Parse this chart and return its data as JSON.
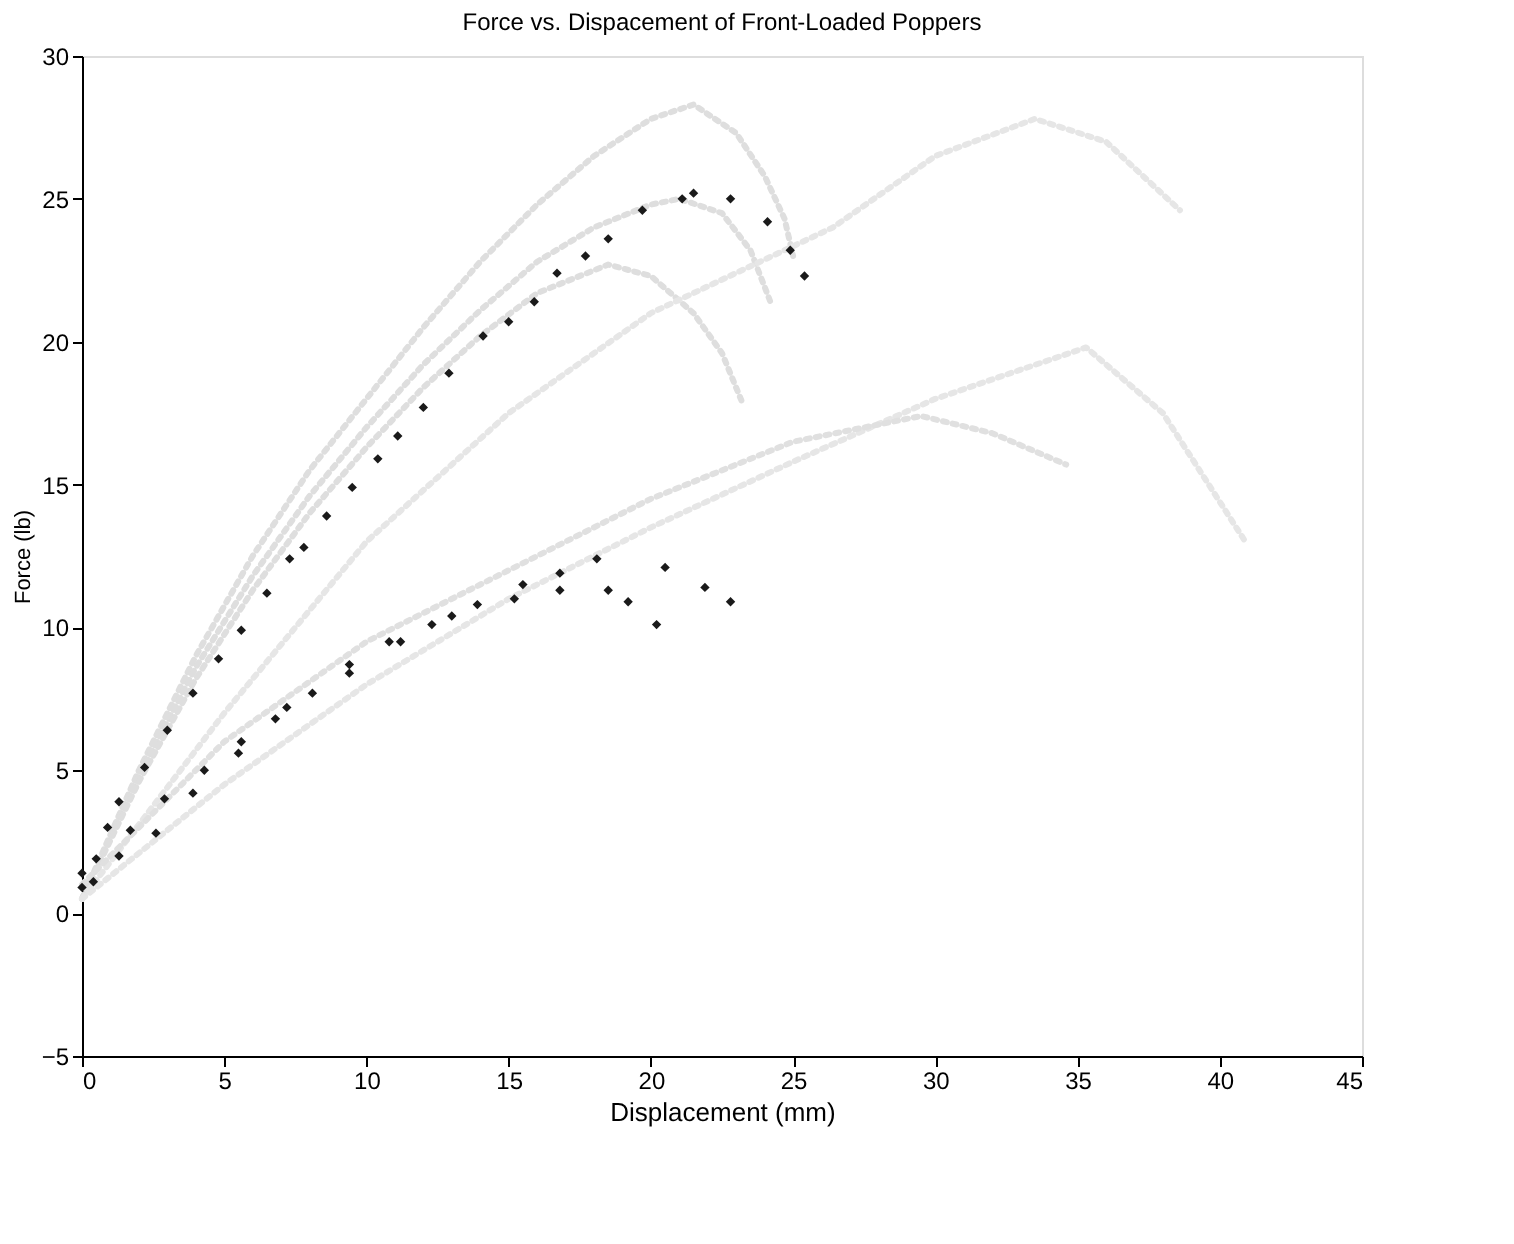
{
  "chart_data": {
    "type": "scatter",
    "title": "Force vs. Dispacement of Front-Loaded Poppers",
    "xlabel": "Displacement (mm)",
    "ylabel": "Force (lb)",
    "xlim": [
      0,
      45
    ],
    "ylim": [
      -5,
      30
    ],
    "xticks": [
      0,
      5,
      10,
      15,
      20,
      25,
      30,
      35,
      40,
      45
    ],
    "yticks": [
      -5,
      0,
      5,
      10,
      15,
      20,
      25,
      30
    ],
    "grid": false,
    "marker": "diamond",
    "series": [
      {
        "type": "line",
        "line_style": "dotted",
        "marker": "none",
        "color": "#dedede",
        "x": [
          0,
          2,
          4,
          6,
          8,
          10,
          12,
          14,
          16,
          18,
          20,
          21.5,
          23,
          24,
          24.7,
          25
        ],
        "values": [
          0.5,
          5,
          9,
          12.5,
          15.5,
          18,
          20.5,
          22.8,
          24.8,
          26.5,
          27.8,
          28.3,
          27.3,
          25.8,
          24.3,
          23
        ]
      },
      {
        "type": "line",
        "line_style": "dotted",
        "marker": "none",
        "color": "#dedede",
        "x": [
          0,
          2,
          4,
          6,
          8,
          10,
          12,
          14,
          16,
          18,
          20,
          21,
          22.5,
          23.5,
          24.2
        ],
        "values": [
          0.5,
          4.8,
          8.6,
          11.8,
          14.6,
          17,
          19.2,
          21.1,
          22.8,
          24,
          24.8,
          25,
          24.5,
          23.2,
          21.4
        ]
      },
      {
        "type": "line",
        "line_style": "dotted",
        "marker": "none",
        "color": "#dedede",
        "x": [
          0,
          2,
          4,
          6,
          8,
          10,
          12,
          14,
          16,
          18.5,
          20,
          21.5,
          22.5,
          23.2
        ],
        "values": [
          0.5,
          4.6,
          8.2,
          11.3,
          14,
          16.3,
          18.4,
          20.2,
          21.7,
          22.7,
          22.3,
          21,
          19.6,
          17.9
        ]
      },
      {
        "type": "line",
        "line_style": "dotted",
        "marker": "none",
        "color": "#e6e6e6",
        "x": [
          0,
          5,
          10,
          15,
          20,
          26.4,
          30,
          33.5,
          36,
          38.6
        ],
        "values": [
          0.5,
          7,
          13,
          17.5,
          21,
          24,
          26.5,
          27.8,
          27,
          24.6
        ]
      },
      {
        "type": "line",
        "line_style": "dotted",
        "marker": "none",
        "color": "#e6e6e6",
        "x": [
          0,
          5,
          10,
          15,
          20,
          25,
          30,
          35.3,
          38,
          40.9
        ],
        "values": [
          0.5,
          4.5,
          8,
          11,
          13.5,
          15.8,
          18,
          19.8,
          17.5,
          13
        ]
      },
      {
        "type": "line",
        "line_style": "dotted",
        "marker": "none",
        "color": "#e0e0e0",
        "x": [
          0,
          5,
          10,
          15,
          20,
          25,
          29.5,
          32,
          34.6
        ],
        "values": [
          1,
          6,
          9.5,
          12,
          14.5,
          16.5,
          17.4,
          16.8,
          15.7
        ]
      },
      {
        "color": "#1a1a1a",
        "x": [
          0,
          0.9,
          1.3,
          2.2,
          3.0,
          3.9,
          4.8,
          5.6,
          6.5,
          7.3,
          7.8,
          8.6,
          9.5,
          10.4,
          11.1,
          12.0,
          12.9,
          14.1,
          15.0,
          15.9,
          16.7,
          17.7,
          18.5,
          19.7,
          21.1,
          21.5,
          22.8,
          24.1,
          24.9,
          25.4
        ],
        "values": [
          1.4,
          3.0,
          3.9,
          5.1,
          6.4,
          7.7,
          8.9,
          9.9,
          11.2,
          12.4,
          12.8,
          13.9,
          14.9,
          15.9,
          16.7,
          17.7,
          18.9,
          20.2,
          20.7,
          21.4,
          22.4,
          23.0,
          23.6,
          24.6,
          25.0,
          25.2,
          25.0,
          24.2,
          23.2,
          22.3
        ]
      },
      {
        "color": "#1a1a1a",
        "x": [
          0,
          0.5,
          1.7,
          2.9,
          4.3,
          5.6,
          6.8,
          8.1,
          9.4,
          10.8,
          12.3,
          13.9,
          15.5,
          16.8,
          18.1,
          20.5,
          21.9,
          22.8
        ],
        "values": [
          0.9,
          1.9,
          2.9,
          4.0,
          5.0,
          6.0,
          6.8,
          7.7,
          8.7,
          9.5,
          10.1,
          10.8,
          11.5,
          11.9,
          12.4,
          12.1,
          11.4,
          10.9
        ]
      },
      {
        "color": "#1a1a1a",
        "x": [
          0.4,
          1.3,
          2.6,
          3.9,
          5.5,
          7.2,
          9.4,
          11.2,
          13.0,
          15.2,
          16.8,
          18.5,
          19.2,
          20.2
        ],
        "values": [
          1.1,
          2.0,
          2.8,
          4.2,
          5.6,
          7.2,
          8.4,
          9.5,
          10.4,
          11.0,
          11.3,
          11.3,
          10.9,
          10.1
        ]
      }
    ]
  }
}
